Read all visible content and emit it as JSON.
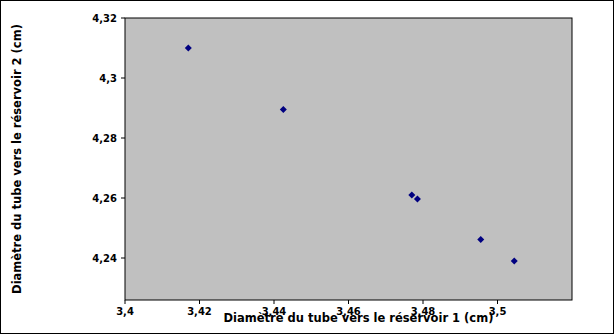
{
  "chart_data": {
    "type": "scatter",
    "x_label": "Diamètre du tube vers le réservoir 1 (cm)",
    "y_label": "Diamètre du tube vers le réservoir 2 (cm)",
    "x": [
      3.417,
      3.4425,
      3.477,
      3.4785,
      3.4955,
      3.5045
    ],
    "values": [
      4.31,
      4.2895,
      4.261,
      4.2597,
      4.2462,
      4.239
    ],
    "color": "#000080",
    "marker": "diamond",
    "grid": false,
    "xlim": [
      3.4,
      3.52
    ],
    "xticks": [
      {
        "value": 3.4,
        "label": "3,4"
      },
      {
        "value": 3.42,
        "label": "3,42"
      },
      {
        "value": 3.44,
        "label": "3,44"
      },
      {
        "value": 3.46,
        "label": "3,46"
      },
      {
        "value": 3.48,
        "label": "3,48"
      },
      {
        "value": 3.5,
        "label": "3,5"
      }
    ],
    "ylim": [
      4.226,
      4.32
    ],
    "yticks": [
      {
        "value": 4.24,
        "label": "4,24"
      },
      {
        "value": 4.26,
        "label": "4,26"
      },
      {
        "value": 4.28,
        "label": "4,28"
      },
      {
        "value": 4.3,
        "label": "4,3"
      },
      {
        "value": 4.32,
        "label": "4,32"
      }
    ]
  }
}
